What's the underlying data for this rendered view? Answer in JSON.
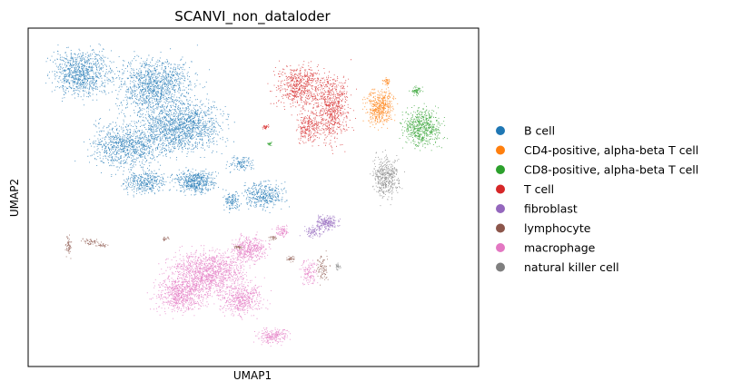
{
  "chart_data": {
    "type": "scatter",
    "title": "SCANVI_non_dataloder",
    "xlabel": "UMAP1",
    "ylabel": "UMAP2",
    "grid": false,
    "ticks_shown": false,
    "legend_placement": "right, outside plot",
    "series": [
      {
        "name": "B cell",
        "color": "#1f77b4"
      },
      {
        "name": "CD4-positive, alpha-beta T cell",
        "color": "#ff7f0e"
      },
      {
        "name": "CD8-positive, alpha-beta T cell",
        "color": "#2ca02c"
      },
      {
        "name": "T cell",
        "color": "#d62728"
      },
      {
        "name": "fibroblast",
        "color": "#9467bd"
      },
      {
        "name": "lymphocyte",
        "color": "#8c564b"
      },
      {
        "name": "macrophage",
        "color": "#e377c2"
      },
      {
        "name": "natural killer cell",
        "color": "#7f7f7f"
      }
    ]
  }
}
